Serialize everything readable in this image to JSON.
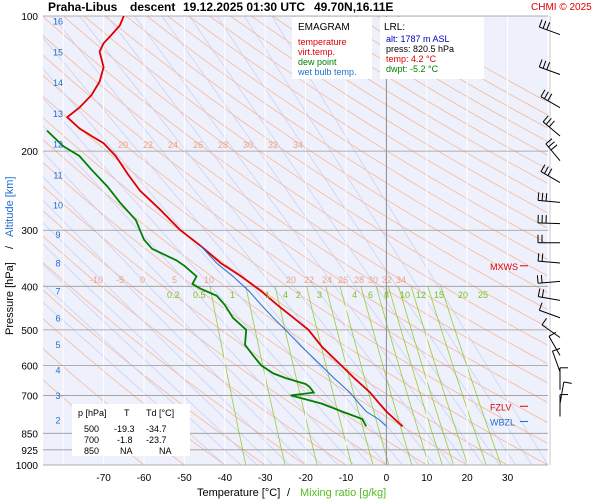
{
  "header": {
    "station": "Praha-Libus",
    "mode": "descent",
    "datetime": "19.12.2025 01:30 UTC",
    "coords": "49.70N,16.11E",
    "copyright": "CHMI © 2025"
  },
  "legend": {
    "title": "EMAGRAM",
    "items": [
      {
        "label": "temperature",
        "color": "#e00000"
      },
      {
        "label": "virt.temp.",
        "color": "#e00000"
      },
      {
        "label": "dew point",
        "color": "#008000"
      },
      {
        "label": "wet bulb temp.",
        "color": "#1e6fd0"
      }
    ]
  },
  "lrl": {
    "title": "LRL:",
    "alt": "alt: 1787 m ASL",
    "press": "press: 820.5 hPa",
    "temp": "temp: 4.2 °C",
    "dwpt": "dwpt: -5.2 °C"
  },
  "table": {
    "headers": [
      "p [hPa]",
      "T",
      "Td [°C]"
    ],
    "rows": [
      [
        "500",
        "-19.3",
        "-34.7"
      ],
      [
        "700",
        "-1.8",
        "-23.7"
      ],
      [
        "850",
        "NA",
        "NA"
      ]
    ]
  },
  "levels": [
    {
      "label": "MXWS",
      "pressure": 360,
      "color": "#e00000"
    },
    {
      "label": "FZLV",
      "pressure": 740,
      "color": "#e00000"
    },
    {
      "label": "WBZL",
      "pressure": 800,
      "color": "#1e6fd0"
    }
  ],
  "chart_data": {
    "type": "line",
    "xlabel": "Temperature [°C]",
    "xlabel_sep": "/",
    "xlabel2": "Mixing ratio [g/kg]",
    "ylabel": "Pressure [hPa]",
    "ylabel_sep": "/",
    "ylabel2": "Altitude [km]",
    "xlim": [
      -85,
      40
    ],
    "ylim": [
      1000,
      100
    ],
    "x_ticks": [
      -70,
      -60,
      -50,
      -40,
      -30,
      -20,
      -10,
      0,
      10,
      20,
      30
    ],
    "y_ticks": [
      100,
      200,
      300,
      400,
      500,
      600,
      700,
      850,
      925,
      1000
    ],
    "km_ticks": [
      2,
      3,
      4,
      5,
      6,
      7,
      8,
      9,
      10,
      11,
      12,
      13,
      14,
      15,
      16
    ],
    "mixing_ratio_labels": [
      "0.2",
      "0.5",
      "1",
      "1",
      "4",
      "2",
      "3",
      "4",
      "6",
      "8",
      "10",
      "12",
      "15",
      "20",
      "25"
    ],
    "theta_labels_upper": [
      "20",
      "22",
      "24",
      "26",
      "28",
      "30",
      "32",
      "34"
    ],
    "theta_labels_lower": [
      "-10",
      "-5",
      "0",
      "5",
      "10",
      "20",
      "22",
      "24",
      "26",
      "28",
      "30",
      "32",
      "34"
    ],
    "series": [
      {
        "name": "temperature",
        "color": "#e00000",
        "points": [
          [
            4,
            820
          ],
          [
            2,
            790
          ],
          [
            0,
            760
          ],
          [
            -2,
            725
          ],
          [
            -4,
            690
          ],
          [
            -8,
            640
          ],
          [
            -12,
            590
          ],
          [
            -16,
            545
          ],
          [
            -19.3,
            500
          ],
          [
            -23,
            470
          ],
          [
            -27,
            440
          ],
          [
            -31,
            410
          ],
          [
            -36,
            380
          ],
          [
            -41,
            355
          ],
          [
            -46,
            325
          ],
          [
            -51,
            300
          ],
          [
            -56,
            270
          ],
          [
            -61,
            245
          ],
          [
            -64,
            225
          ],
          [
            -67,
            205
          ],
          [
            -70,
            192
          ],
          [
            -73,
            185
          ],
          [
            -76,
            178
          ],
          [
            -79,
            168
          ],
          [
            -76,
            160
          ],
          [
            -73,
            150
          ],
          [
            -71,
            140
          ],
          [
            -70,
            130
          ],
          [
            -71,
            120
          ],
          [
            -70,
            115
          ],
          [
            -68,
            110
          ],
          [
            -66,
            105
          ],
          [
            -65,
            100
          ]
        ]
      },
      {
        "name": "dew point",
        "color": "#008000",
        "points": [
          [
            -5,
            820
          ],
          [
            -6,
            790
          ],
          [
            -11,
            760
          ],
          [
            -16,
            730
          ],
          [
            -23.7,
            700
          ],
          [
            -18,
            690
          ],
          [
            -19,
            670
          ],
          [
            -20,
            660
          ],
          [
            -25,
            640
          ],
          [
            -28,
            625
          ],
          [
            -31,
            600
          ],
          [
            -33,
            570
          ],
          [
            -35,
            540
          ],
          [
            -34.7,
            500
          ],
          [
            -38,
            470
          ],
          [
            -40,
            440
          ],
          [
            -42,
            420
          ],
          [
            -46,
            405
          ],
          [
            -48,
            395
          ],
          [
            -47,
            380
          ],
          [
            -50,
            360
          ],
          [
            -52,
            350
          ],
          [
            -55,
            340
          ],
          [
            -58,
            330
          ],
          [
            -60,
            315
          ],
          [
            -61,
            300
          ],
          [
            -62,
            285
          ],
          [
            -66,
            260
          ],
          [
            -69,
            240
          ],
          [
            -73,
            220
          ],
          [
            -76,
            205
          ],
          [
            -80,
            195
          ],
          [
            -84,
            180
          ]
        ]
      },
      {
        "name": "wet bulb temp.",
        "color": "#1e6fd0",
        "points": [
          [
            0,
            820
          ],
          [
            -2,
            790
          ],
          [
            -5,
            760
          ],
          [
            -7,
            725
          ],
          [
            -9,
            690
          ],
          [
            -13,
            640
          ],
          [
            -17,
            590
          ],
          [
            -21,
            545
          ],
          [
            -25,
            500
          ],
          [
            -28,
            470
          ],
          [
            -31,
            440
          ],
          [
            -34,
            410
          ],
          [
            -38,
            380
          ],
          [
            -42,
            355
          ],
          [
            -46,
            325
          ]
        ]
      }
    ]
  }
}
